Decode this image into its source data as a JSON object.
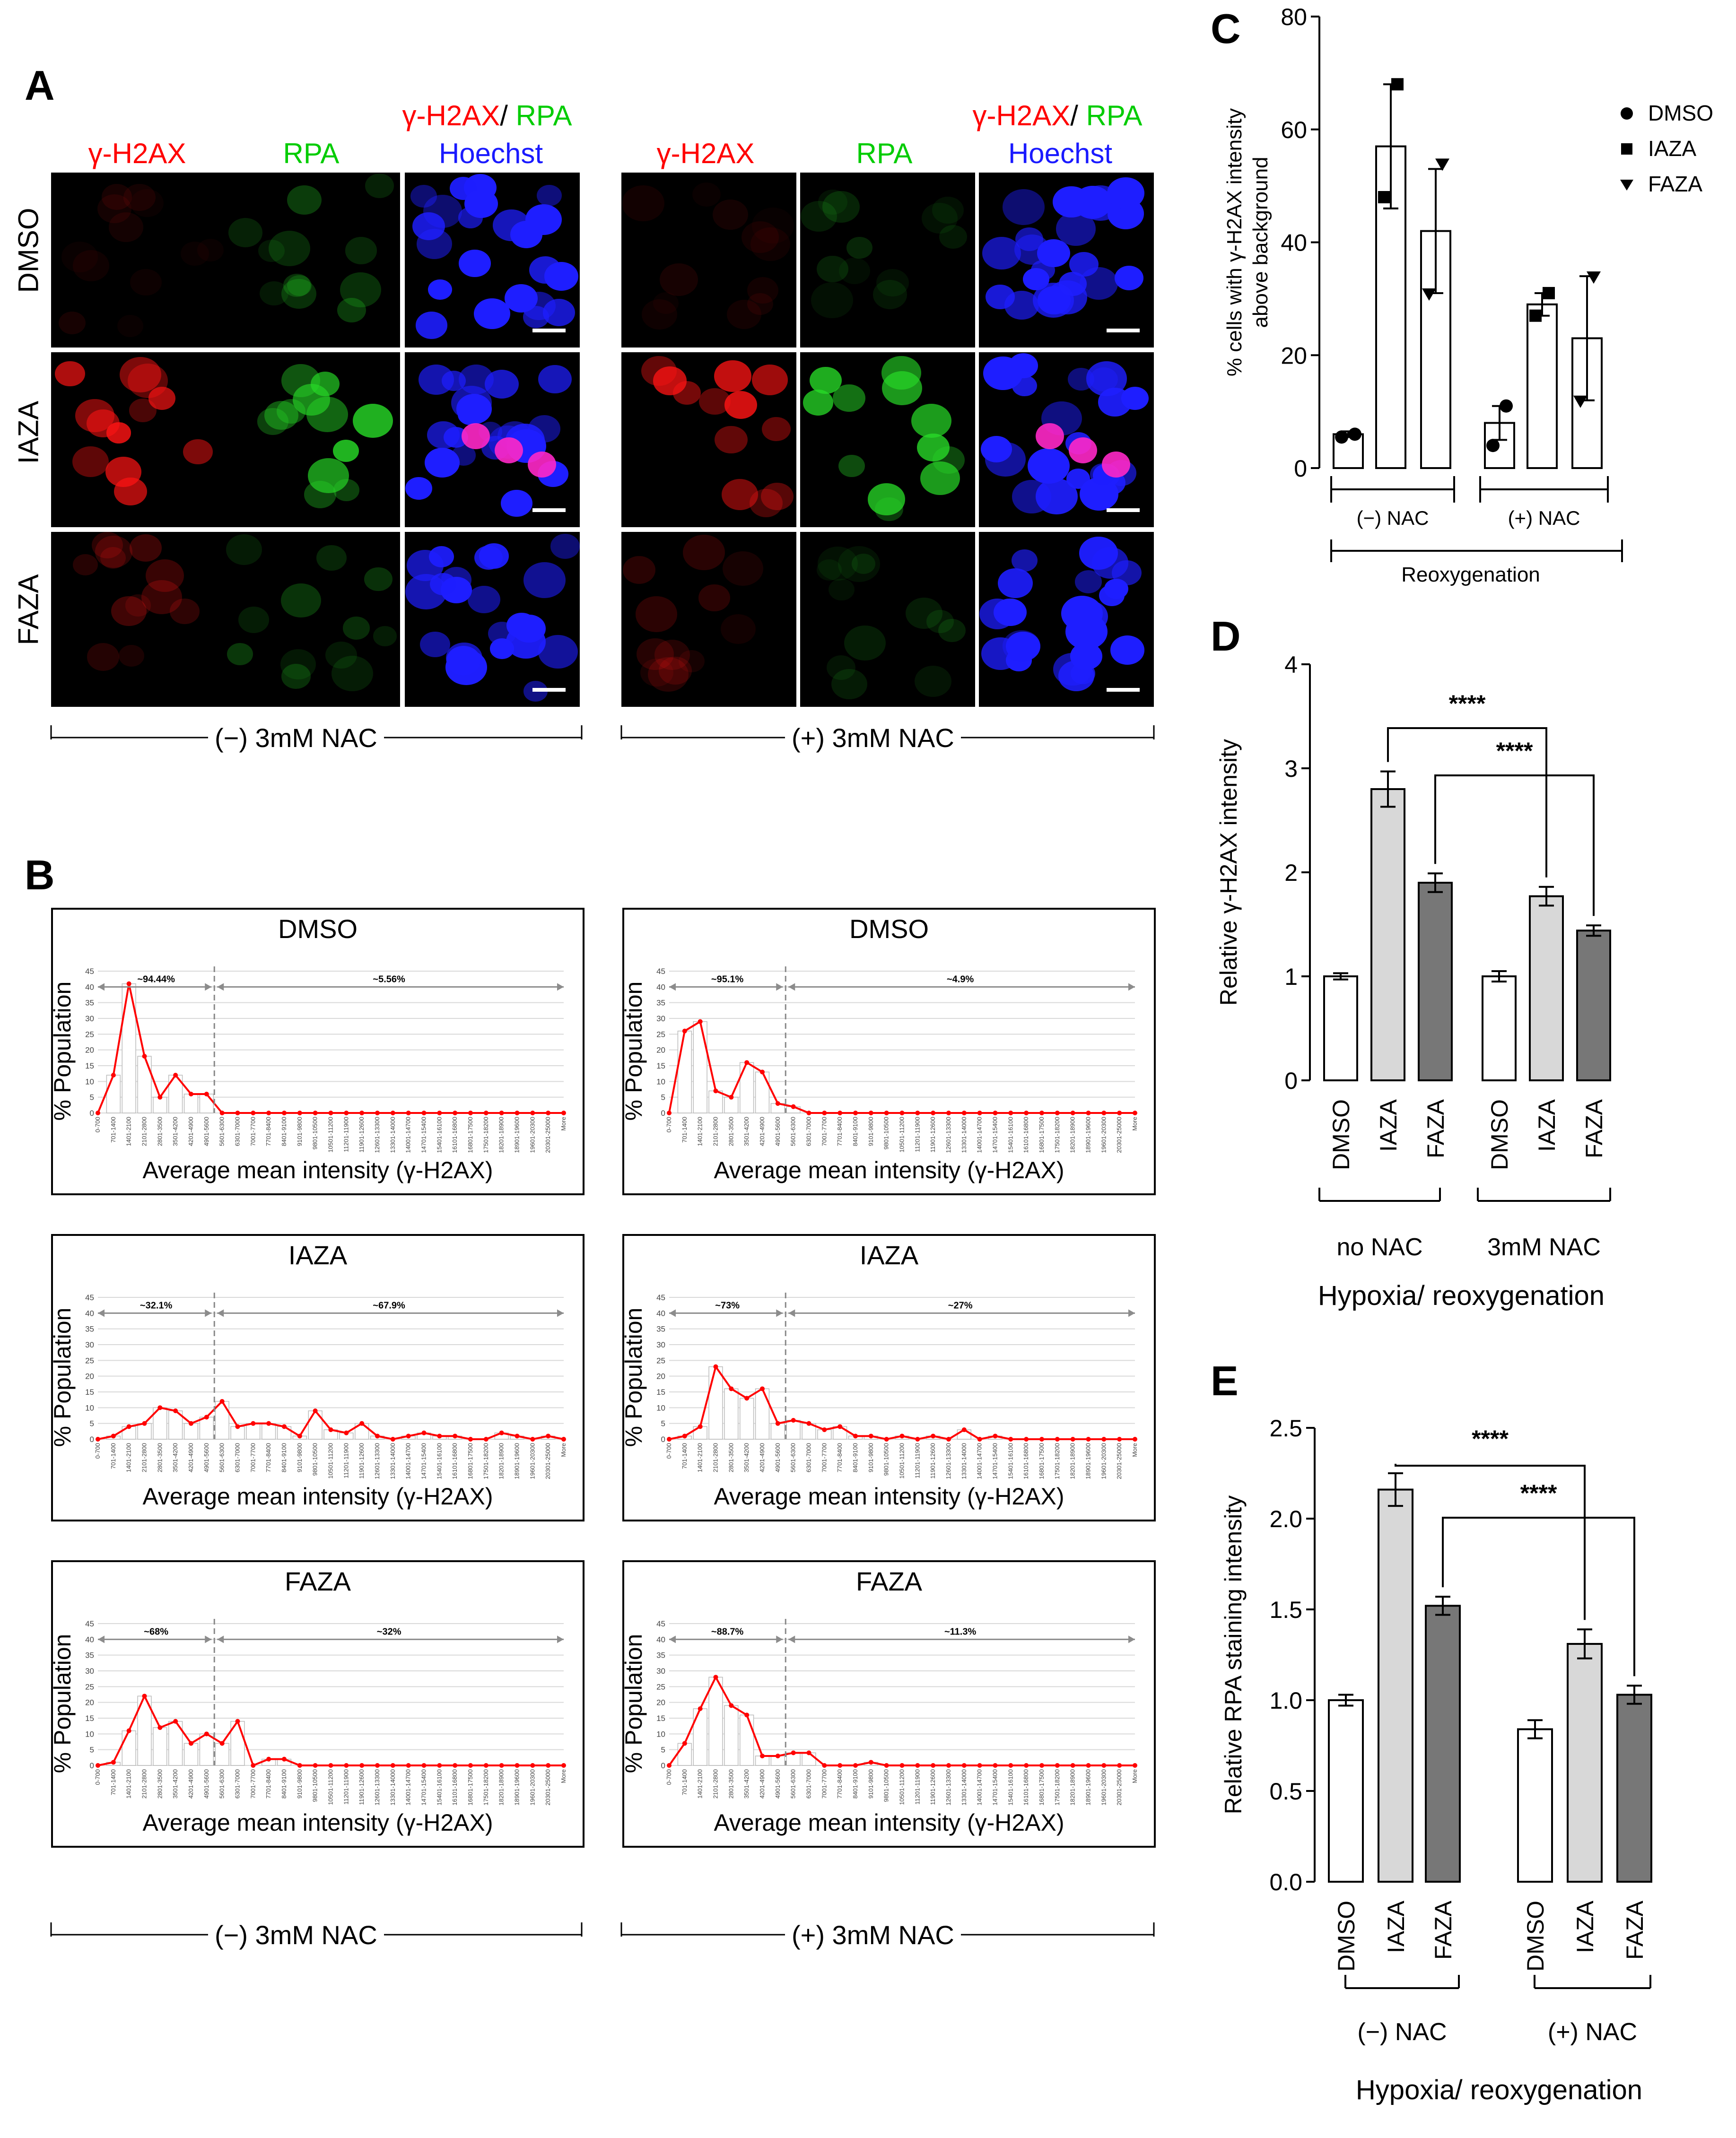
{
  "panels": {
    "a": "A",
    "b": "B",
    "c": "C",
    "d": "D",
    "e": "E"
  },
  "panel_a": {
    "col_headers": {
      "h2ax": "γ-H2AX",
      "rpa": "RPA",
      "merge_h2ax": "γ-H2AX",
      "merge_slash": "/ ",
      "merge_rpa": "RPA",
      "hoechst": "Hoechst"
    },
    "rows": [
      "DMSO",
      "IAZA",
      "FAZA"
    ],
    "group_left": "(−) 3mM NAC",
    "group_right": "(+) 3mM NAC"
  },
  "panel_b": {
    "ylabel": "% Population",
    "xlabel": "Average mean intensity (γ-H2AX)",
    "group_left": "(−) 3mM NAC",
    "group_right": "(+) 3mM NAC",
    "y_ticks": [
      "0",
      "5",
      "10",
      "15",
      "20",
      "25",
      "30",
      "35",
      "40",
      "45"
    ],
    "bins": [
      "0-700",
      "701-1400",
      "1401-2100",
      "2101-2800",
      "2801-3500",
      "3501-4200",
      "4201-4900",
      "4901-5600",
      "5601-6300",
      "6301-7000",
      "7001-7700",
      "7701-8400",
      "8401-9100",
      "9101-9800",
      "9801-10500",
      "10501-11200",
      "11201-11900",
      "11901-12600",
      "12601-13300",
      "13301-14000",
      "14001-14700",
      "14701-15400",
      "15401-16100",
      "16101-16800",
      "16801-17500",
      "17501-18200",
      "18201-18900",
      "18901-19600",
      "19601-20300",
      "20301-25000",
      "More"
    ],
    "histograms": [
      {
        "title": "DMSO",
        "left_pct": "~94.44%",
        "right_pct": "~5.56%",
        "values": [
          0,
          12,
          41,
          18,
          5,
          12,
          6,
          6,
          0,
          0,
          0,
          0,
          0,
          0,
          0,
          0,
          0,
          0,
          0,
          0,
          0,
          0,
          0,
          0,
          0,
          0,
          0,
          0,
          0,
          0,
          0
        ]
      },
      {
        "title": "DMSO",
        "left_pct": "~95.1%",
        "right_pct": "~4.9%",
        "values": [
          0,
          26,
          29,
          7,
          5,
          16,
          13,
          3,
          2,
          0,
          0,
          0,
          0,
          0,
          0,
          0,
          0,
          0,
          0,
          0,
          0,
          0,
          0,
          0,
          0,
          0,
          0,
          0,
          0,
          0,
          0
        ]
      },
      {
        "title": "IAZA",
        "left_pct": "~32.1%",
        "right_pct": "~67.9%",
        "values": [
          0,
          1,
          4,
          5,
          10,
          9,
          5,
          7,
          12,
          4,
          5,
          5,
          4,
          1,
          9,
          3,
          2,
          5,
          1,
          0,
          1,
          2,
          1,
          1,
          0,
          0,
          2,
          1,
          0,
          1,
          0
        ]
      },
      {
        "title": "IAZA",
        "left_pct": "~73%",
        "right_pct": "~27%",
        "values": [
          0,
          1,
          4,
          23,
          16,
          13,
          16,
          5,
          6,
          5,
          3,
          4,
          1,
          1,
          0,
          1,
          0,
          1,
          0,
          3,
          0,
          1,
          0,
          0,
          0,
          0,
          0,
          0,
          0,
          0,
          0
        ]
      },
      {
        "title": "FAZA",
        "left_pct": "~68%",
        "right_pct": "~32%",
        "values": [
          0,
          1,
          11,
          22,
          12,
          14,
          7,
          10,
          7,
          14,
          0,
          2,
          2,
          0,
          0,
          0,
          0,
          0,
          0,
          0,
          0,
          0,
          0,
          0,
          0,
          0,
          0,
          0,
          0,
          0,
          0
        ]
      },
      {
        "title": "FAZA",
        "left_pct": "~88.7%",
        "right_pct": "~11.3%",
        "values": [
          0,
          7,
          18,
          28,
          19,
          16,
          3,
          3,
          4,
          4,
          0,
          0,
          0,
          1,
          0,
          0,
          0,
          0,
          0,
          0,
          0,
          0,
          0,
          0,
          0,
          0,
          0,
          0,
          0,
          0,
          0
        ]
      }
    ]
  },
  "chart_data": [
    {
      "type": "bar",
      "panel": "C",
      "ylabel": "% cells with γ-H2AX intensity above background",
      "ylim": [
        0,
        80
      ],
      "y_ticks": [
        "0",
        "20",
        "40",
        "60",
        "80"
      ],
      "legend": [
        "DMSO",
        "IAZA",
        "FAZA"
      ],
      "categories": [
        "DMSO",
        "IAZA",
        "FAZA",
        "DMSO",
        "IAZA",
        "FAZA"
      ],
      "values": [
        6,
        57,
        42,
        8,
        29,
        23
      ],
      "errors": [
        0.5,
        11,
        11,
        3,
        2,
        11
      ],
      "points": [
        [
          5.5,
          6
        ],
        [
          48,
          68
        ],
        [
          31,
          54
        ],
        [
          4,
          11
        ],
        [
          27,
          31
        ],
        [
          12,
          34
        ]
      ],
      "group_labels": [
        "(−) NAC",
        "(+) NAC"
      ],
      "outer_label": "Reoxygenation"
    },
    {
      "type": "bar",
      "panel": "D",
      "ylabel": "Relative γ-H2AX intensity",
      "ylim": [
        0,
        4
      ],
      "y_ticks": [
        "0",
        "1",
        "2",
        "3",
        "4"
      ],
      "categories": [
        "DMSO",
        "IAZA",
        "FAZA",
        "DMSO",
        "IAZA",
        "FAZA"
      ],
      "values": [
        1.0,
        2.8,
        1.9,
        1.0,
        1.77,
        1.44
      ],
      "errors": [
        0.03,
        0.17,
        0.09,
        0.05,
        0.09,
        0.05
      ],
      "significance": [
        "****",
        "****"
      ],
      "group_labels": [
        "no NAC",
        "3mM NAC"
      ],
      "outer_label": "Hypoxia/ reoxygenation"
    },
    {
      "type": "bar",
      "panel": "E",
      "ylabel": "Relative RPA staining intensity",
      "ylim": [
        0,
        2.5
      ],
      "y_ticks": [
        "0.0",
        "0.5",
        "1.0",
        "1.5",
        "2.0",
        "2.5"
      ],
      "categories": [
        "DMSO",
        "IAZA",
        "FAZA",
        "DMSO",
        "IAZA",
        "FAZA"
      ],
      "values": [
        1.0,
        2.16,
        1.52,
        0.84,
        1.31,
        1.03
      ],
      "errors": [
        0.03,
        0.09,
        0.05,
        0.05,
        0.08,
        0.05
      ],
      "significance": [
        "****",
        "****"
      ],
      "group_labels": [
        "(−) NAC",
        "(+) NAC"
      ],
      "outer_label": "Hypoxia/ reoxygenation"
    }
  ],
  "colors": {
    "bar_white": "#ffffff",
    "bar_light": "#d8d8d8",
    "bar_dark": "#777777",
    "hist_line": "#ff0000",
    "arrow": "#8c8c8c"
  }
}
